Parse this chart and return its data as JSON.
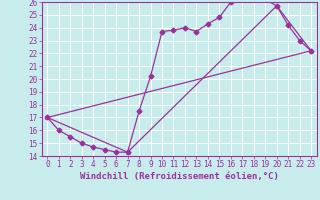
{
  "xlabel": "Windchill (Refroidissement éolien,°C)",
  "xlim": [
    -0.5,
    23.5
  ],
  "ylim": [
    14,
    26
  ],
  "xticks": [
    0,
    1,
    2,
    3,
    4,
    5,
    6,
    7,
    8,
    9,
    10,
    11,
    12,
    13,
    14,
    15,
    16,
    17,
    18,
    19,
    20,
    21,
    22,
    23
  ],
  "yticks": [
    14,
    15,
    16,
    17,
    18,
    19,
    20,
    21,
    22,
    23,
    24,
    25,
    26
  ],
  "bg_color": "#c8ecec",
  "grid_color": "#b0d8d8",
  "line_color": "#993399",
  "line1_x": [
    0,
    1,
    2,
    3,
    4,
    5,
    6,
    7,
    8,
    9,
    10,
    11,
    12,
    13,
    14,
    15,
    16,
    17,
    18,
    19,
    20,
    21,
    22,
    23
  ],
  "line1_y": [
    17.0,
    16.0,
    15.5,
    15.0,
    14.7,
    14.5,
    14.3,
    14.3,
    17.5,
    20.2,
    23.7,
    23.8,
    24.0,
    23.7,
    24.3,
    24.8,
    26.0,
    26.2,
    26.2,
    26.2,
    25.7,
    24.2,
    23.0,
    22.2
  ],
  "line2_x": [
    0,
    23
  ],
  "line2_y": [
    17.0,
    22.2
  ],
  "line3_x": [
    0,
    7,
    20,
    23
  ],
  "line3_y": [
    17.0,
    14.3,
    25.7,
    22.2
  ],
  "tick_fontsize": 5.5,
  "label_fontsize": 6.5
}
